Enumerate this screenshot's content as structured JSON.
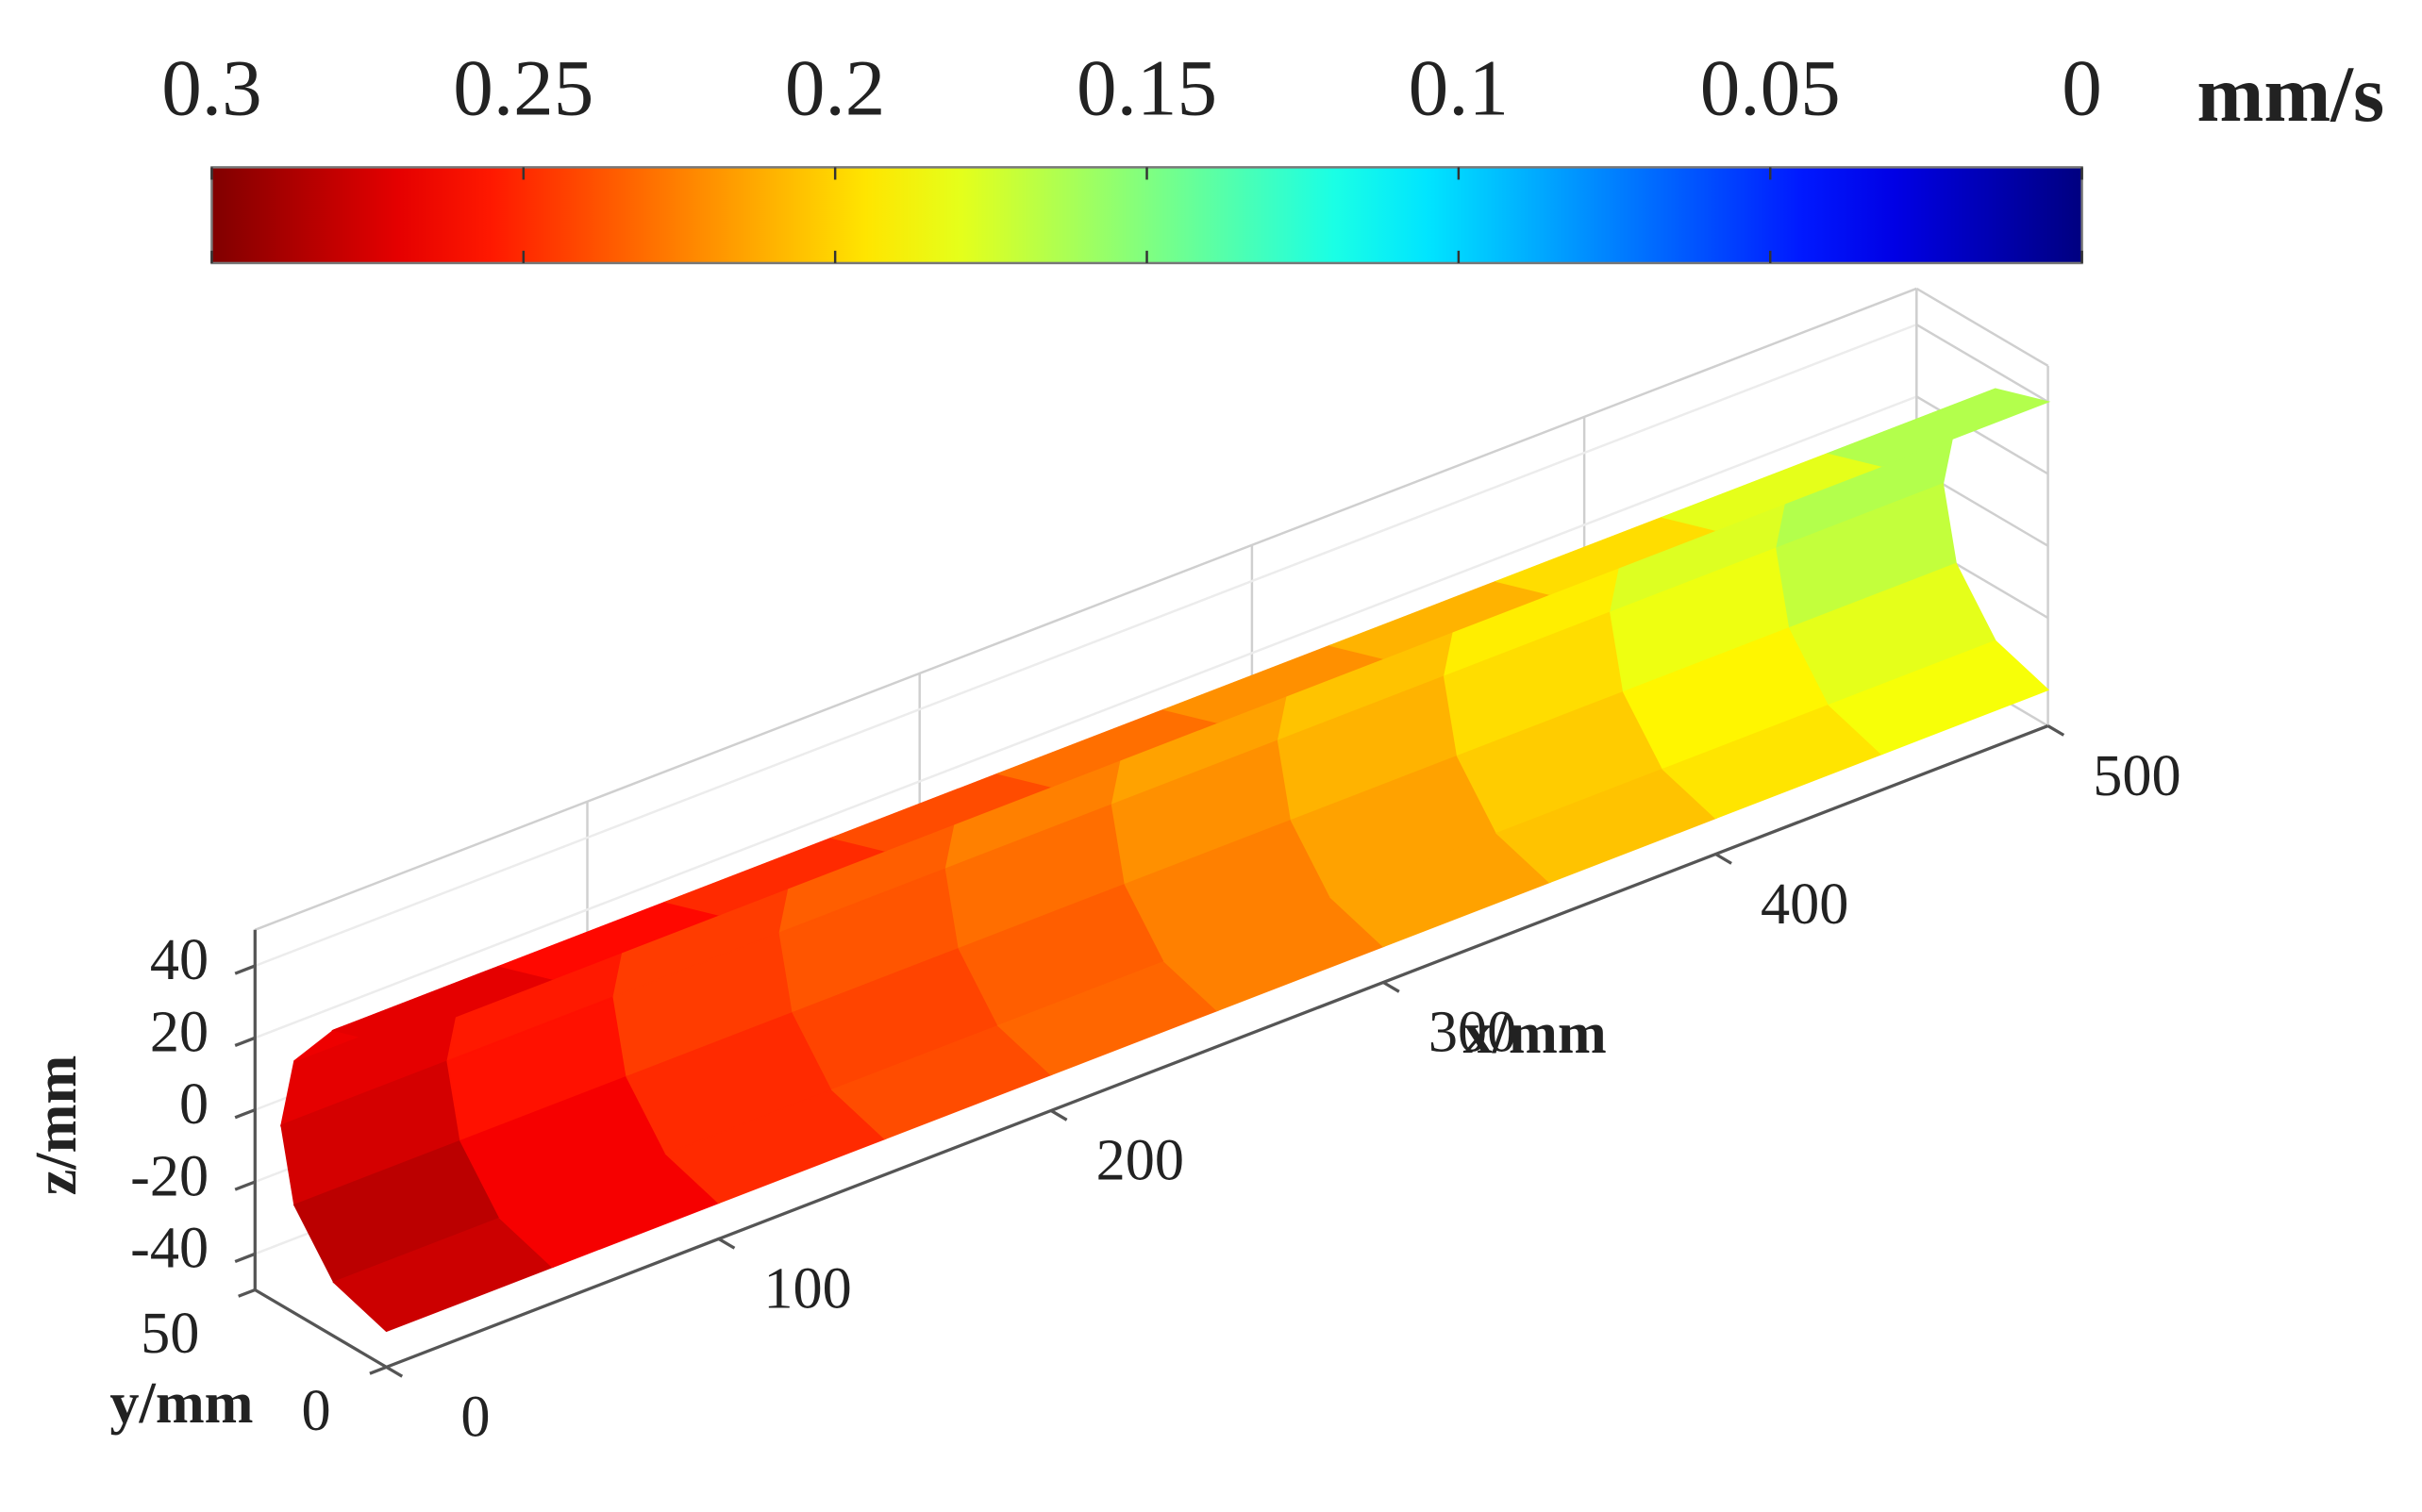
{
  "chart_data": {
    "type": "surface3d",
    "cmap": "jet",
    "grid": true,
    "colorbar": {
      "label": "mm/s",
      "clim": [
        0.3,
        0
      ],
      "ticks": [
        0.3,
        0.25,
        0.2,
        0.15,
        0.1,
        0.05,
        0
      ]
    },
    "xlabel": "x/mm",
    "ylabel": "y/mm",
    "zlabel": "z/mm",
    "xlim": [
      0,
      500
    ],
    "ylim": [
      0,
      50
    ],
    "zlim": [
      -50,
      50
    ],
    "xticks": [
      0,
      100,
      200,
      300,
      400,
      500
    ],
    "yticks": [
      0,
      50
    ],
    "zticks": [
      -40,
      -20,
      0,
      20,
      40
    ],
    "surface": {
      "x": [
        0,
        50,
        100,
        150,
        200,
        250,
        300,
        350,
        400,
        450,
        500
      ],
      "y": [
        0,
        20,
        35,
        40,
        35,
        20,
        0
      ],
      "z": [
        40,
        35,
        20,
        0,
        -20,
        -35,
        -40
      ],
      "values": [
        [
          0.28,
          0.27,
          0.26,
          0.25,
          0.24,
          0.23,
          0.22,
          0.21,
          0.19,
          0.17,
          0.16
        ],
        [
          0.27,
          0.26,
          0.25,
          0.24,
          0.23,
          0.22,
          0.21,
          0.2,
          0.19,
          0.17,
          0.16
        ],
        [
          0.28,
          0.26,
          0.25,
          0.24,
          0.23,
          0.22,
          0.21,
          0.2,
          0.18,
          0.17,
          0.16
        ],
        [
          0.28,
          0.26,
          0.25,
          0.24,
          0.23,
          0.22,
          0.21,
          0.2,
          0.19,
          0.17,
          0.16
        ],
        [
          0.29,
          0.27,
          0.25,
          0.24,
          0.24,
          0.23,
          0.22,
          0.21,
          0.19,
          0.18,
          0.17
        ],
        [
          0.29,
          0.28,
          0.26,
          0.25,
          0.24,
          0.23,
          0.22,
          0.21,
          0.2,
          0.19,
          0.18
        ],
        [
          0.27,
          0.27,
          0.25,
          0.24,
          0.23,
          0.23,
          0.22,
          0.21,
          0.2,
          0.19,
          0.18
        ]
      ]
    }
  }
}
